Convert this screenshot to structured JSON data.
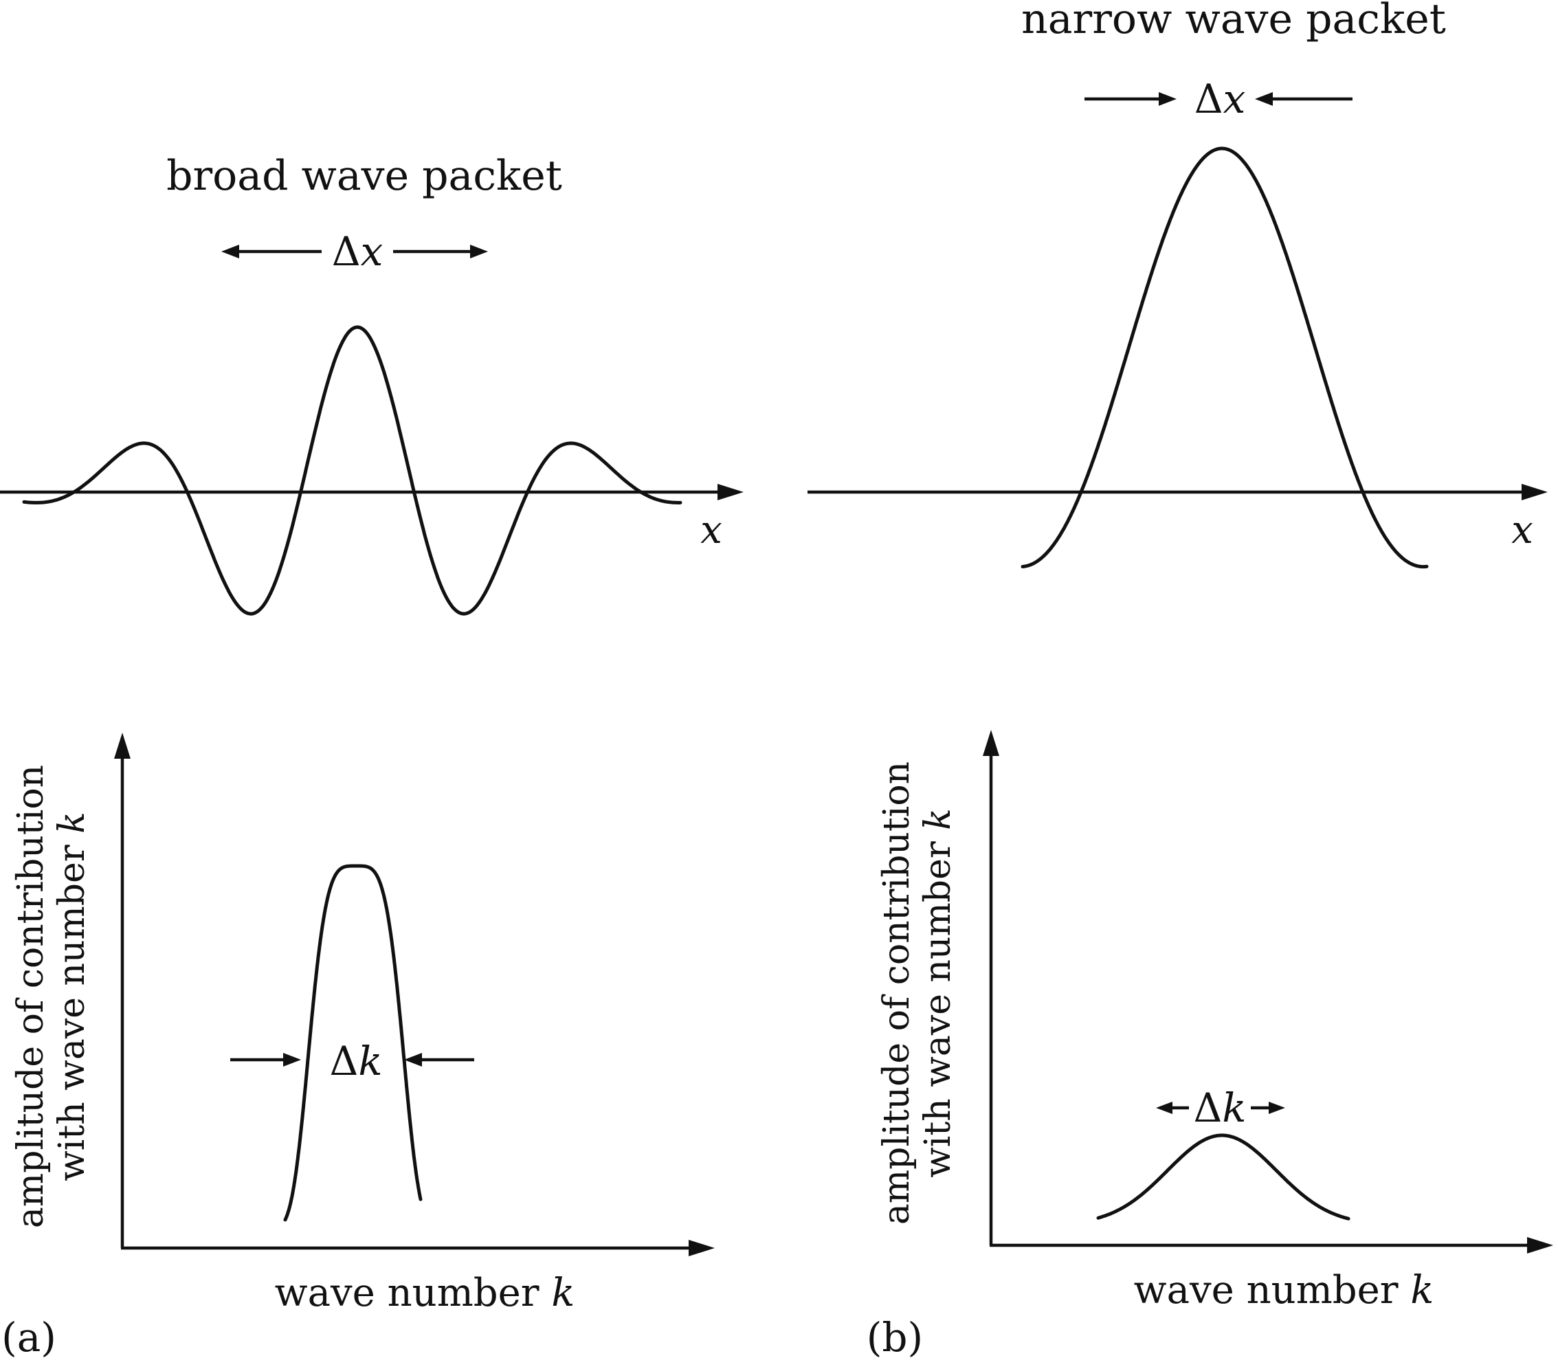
{
  "panel_a": {
    "tag": "(a)",
    "top_title": "broad wave packet",
    "width_label": {
      "delta": "Δ",
      "var": "x"
    },
    "x_axis_label": "x",
    "bottom_y_label_line1": "amplitude of contribution",
    "bottom_y_label_line2_prefix": "with wave number ",
    "bottom_y_label_line2_var": "k",
    "bottom_width_label": {
      "delta": "Δ",
      "var": "k"
    },
    "bottom_x_label_prefix": "wave number ",
    "bottom_x_label_var": "k"
  },
  "panel_b": {
    "tag": "(b)",
    "top_title": "narrow wave packet",
    "width_label": {
      "delta": "Δ",
      "var": "x"
    },
    "x_axis_label": "x",
    "bottom_y_label_line1": "amplitude of contribution",
    "bottom_y_label_line2_prefix": "with wave number ",
    "bottom_y_label_line2_var": "k",
    "bottom_width_label": {
      "delta": "Δ",
      "var": "k"
    },
    "bottom_x_label_prefix": "wave number ",
    "bottom_x_label_var": "k"
  },
  "colors": {
    "ink": "#111111",
    "background": "#ffffff"
  }
}
